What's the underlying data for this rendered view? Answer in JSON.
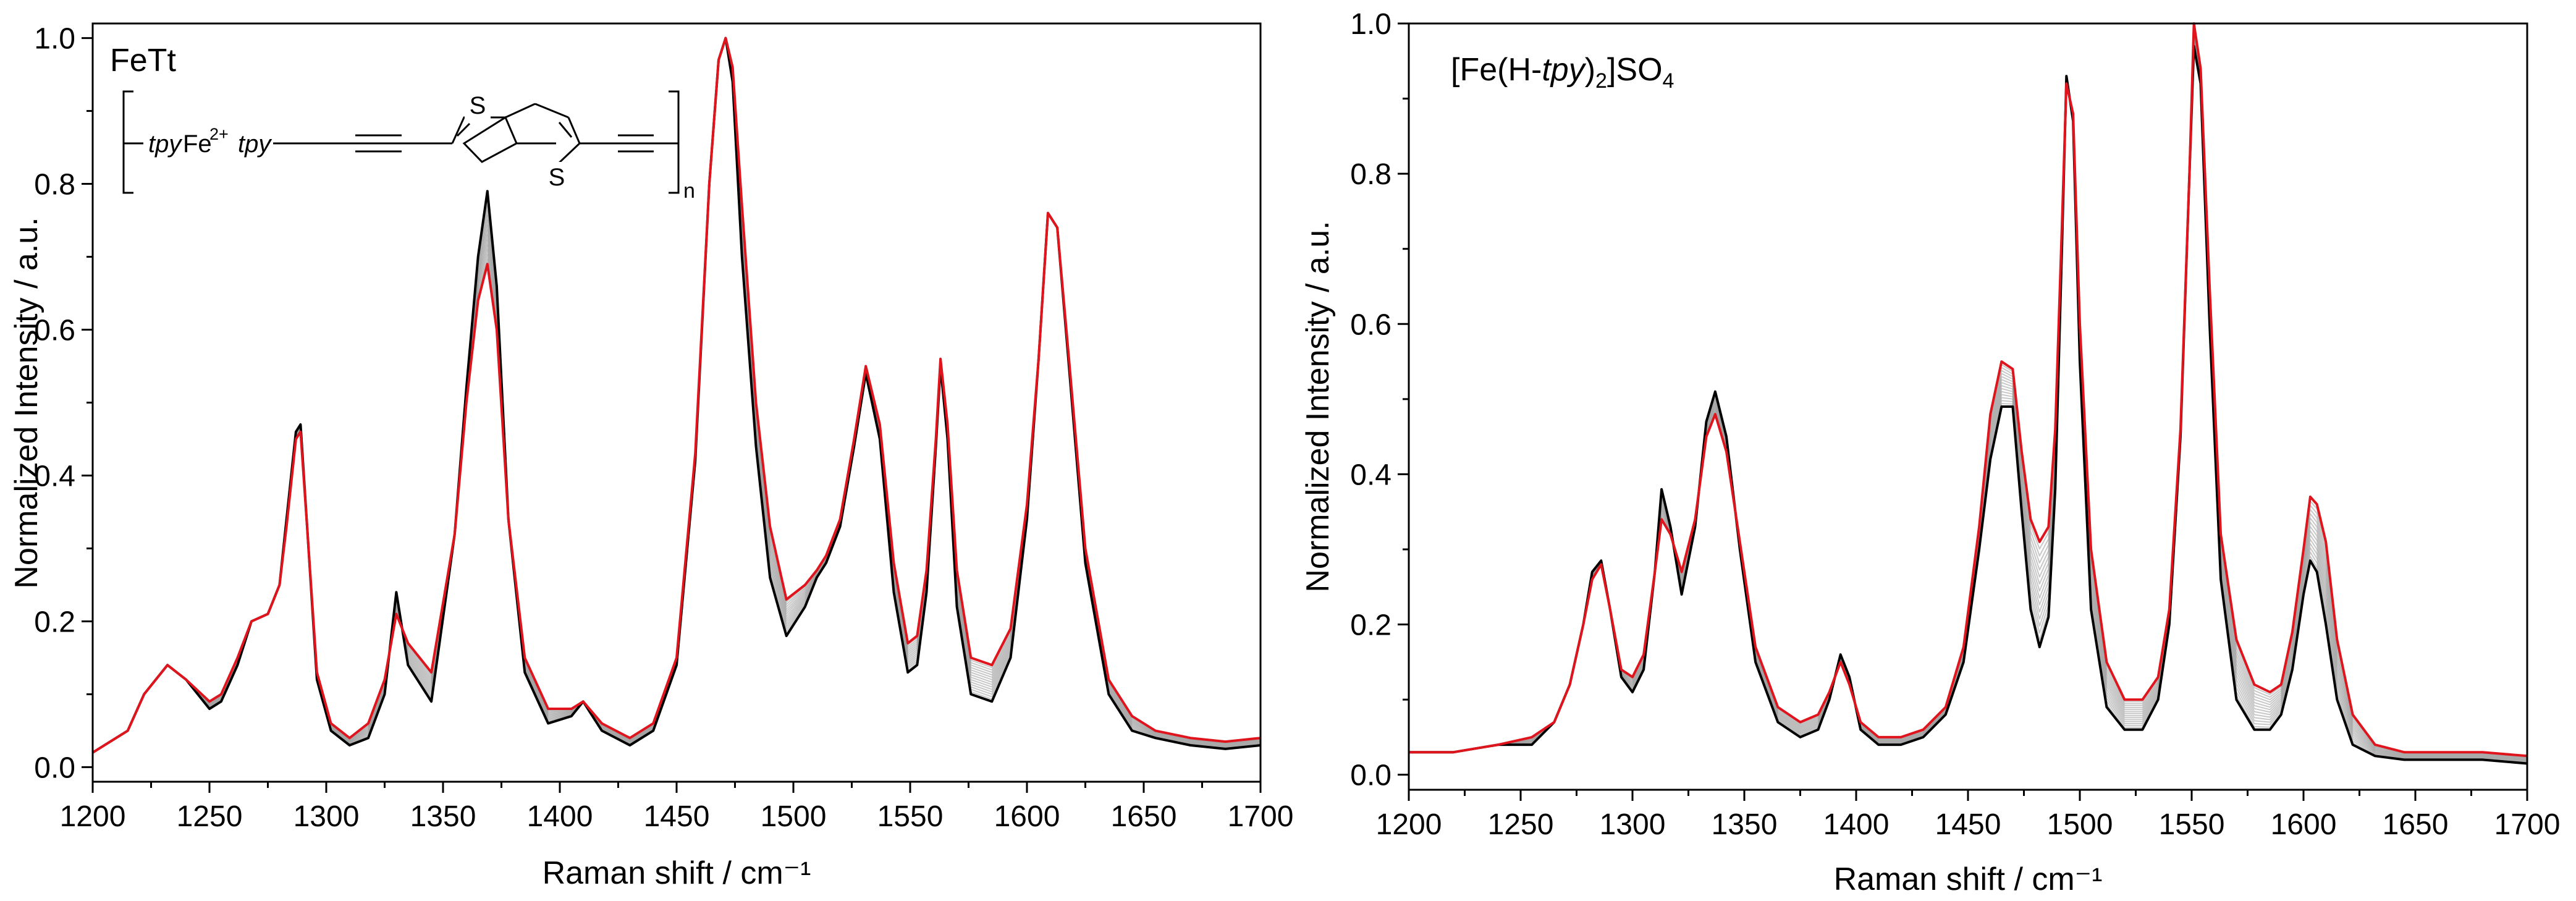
{
  "colors": {
    "initial": "#000000",
    "intermediate": "#9a9a9a",
    "final": "#e0141c",
    "axis": "#000000"
  },
  "molecule": {
    "tpy_left": "tpy",
    "metal": "Fe",
    "charge": "2+",
    "tpy_right": "tpy",
    "sulfur": "S",
    "repeat": "n"
  },
  "chart_data": [
    {
      "type": "line",
      "panel": "left",
      "title": "FeTt",
      "xlabel": "Raman shift / cm⁻¹",
      "ylabel": "Normalized Intensity / a.u.",
      "xlim": [
        1200,
        1700
      ],
      "ylim": [
        -0.02,
        1.02
      ],
      "xticks": [
        1200,
        1250,
        1300,
        1350,
        1400,
        1450,
        1500,
        1550,
        1600,
        1650,
        1700
      ],
      "yticks": [
        0.0,
        0.2,
        0.4,
        0.6,
        0.8,
        1.0
      ],
      "ytick_labels": [
        "0.0",
        "0.2",
        "0.4",
        "0.6",
        "0.8",
        "1.0"
      ],
      "series": [
        {
          "name": "initial",
          "color": "#000000",
          "x": [
            1200,
            1215,
            1222,
            1232,
            1240,
            1250,
            1255,
            1262,
            1268,
            1275,
            1280,
            1283,
            1287,
            1289,
            1292,
            1296,
            1302,
            1310,
            1318,
            1325,
            1330,
            1335,
            1345,
            1355,
            1360,
            1365,
            1369,
            1373,
            1378,
            1385,
            1395,
            1405,
            1410,
            1418,
            1430,
            1440,
            1450,
            1458,
            1464,
            1468,
            1471,
            1474,
            1478,
            1484,
            1490,
            1497,
            1505,
            1510,
            1514,
            1520,
            1526,
            1531,
            1537,
            1543,
            1549,
            1553,
            1557,
            1561,
            1563,
            1566,
            1570,
            1576,
            1585,
            1593,
            1600,
            1605,
            1609,
            1613,
            1618,
            1625,
            1635,
            1645,
            1655,
            1670,
            1685,
            1700
          ],
          "y": [
            0.02,
            0.05,
            0.1,
            0.14,
            0.12,
            0.08,
            0.09,
            0.14,
            0.2,
            0.21,
            0.25,
            0.34,
            0.46,
            0.47,
            0.32,
            0.12,
            0.05,
            0.03,
            0.04,
            0.1,
            0.24,
            0.14,
            0.09,
            0.32,
            0.52,
            0.7,
            0.79,
            0.66,
            0.34,
            0.13,
            0.06,
            0.07,
            0.09,
            0.05,
            0.03,
            0.05,
            0.14,
            0.42,
            0.8,
            0.97,
            1.0,
            0.94,
            0.7,
            0.44,
            0.26,
            0.18,
            0.22,
            0.26,
            0.28,
            0.33,
            0.44,
            0.54,
            0.45,
            0.24,
            0.13,
            0.14,
            0.24,
            0.44,
            0.55,
            0.45,
            0.22,
            0.1,
            0.09,
            0.15,
            0.34,
            0.56,
            0.76,
            0.74,
            0.55,
            0.28,
            0.1,
            0.05,
            0.04,
            0.03,
            0.025,
            0.03
          ]
        },
        {
          "name": "final",
          "color": "#e0141c",
          "x": [
            1200,
            1215,
            1222,
            1232,
            1240,
            1250,
            1255,
            1262,
            1268,
            1275,
            1280,
            1283,
            1287,
            1289,
            1292,
            1296,
            1302,
            1310,
            1318,
            1325,
            1330,
            1335,
            1345,
            1355,
            1360,
            1365,
            1369,
            1373,
            1378,
            1385,
            1395,
            1405,
            1410,
            1418,
            1430,
            1440,
            1450,
            1458,
            1464,
            1468,
            1471,
            1474,
            1478,
            1484,
            1490,
            1497,
            1505,
            1510,
            1514,
            1520,
            1526,
            1531,
            1537,
            1543,
            1549,
            1553,
            1557,
            1561,
            1563,
            1566,
            1570,
            1576,
            1585,
            1593,
            1600,
            1605,
            1609,
            1613,
            1618,
            1625,
            1635,
            1645,
            1655,
            1670,
            1685,
            1700
          ],
          "y": [
            0.02,
            0.05,
            0.1,
            0.14,
            0.12,
            0.09,
            0.1,
            0.15,
            0.2,
            0.21,
            0.25,
            0.33,
            0.45,
            0.46,
            0.32,
            0.13,
            0.06,
            0.04,
            0.06,
            0.12,
            0.21,
            0.17,
            0.13,
            0.32,
            0.5,
            0.64,
            0.69,
            0.6,
            0.34,
            0.15,
            0.08,
            0.08,
            0.09,
            0.06,
            0.04,
            0.06,
            0.15,
            0.43,
            0.8,
            0.97,
            1.0,
            0.96,
            0.77,
            0.5,
            0.33,
            0.23,
            0.25,
            0.27,
            0.29,
            0.34,
            0.45,
            0.55,
            0.47,
            0.28,
            0.17,
            0.18,
            0.27,
            0.45,
            0.56,
            0.47,
            0.27,
            0.15,
            0.14,
            0.19,
            0.36,
            0.56,
            0.76,
            0.74,
            0.56,
            0.3,
            0.12,
            0.07,
            0.05,
            0.04,
            0.035,
            0.04
          ]
        }
      ]
    },
    {
      "type": "line",
      "panel": "right",
      "title": "[Fe(H-tpy)₂]SO₄",
      "title_parts": {
        "pre": "[Fe(H-",
        "italic": "tpy",
        "mid": ")",
        "sub1": "2",
        "post": "]SO",
        "sub2": "4"
      },
      "xlabel": "Raman shift / cm⁻¹",
      "ylabel": "Normalized Intensity / a.u.",
      "xlim": [
        1200,
        1700
      ],
      "ylim": [
        -0.02,
        1.0
      ],
      "xticks": [
        1200,
        1250,
        1300,
        1350,
        1400,
        1450,
        1500,
        1550,
        1600,
        1650,
        1700
      ],
      "yticks": [
        0.0,
        0.2,
        0.4,
        0.6,
        0.8,
        1.0
      ],
      "ytick_labels": [
        "0.0",
        "0.2",
        "0.4",
        "0.6",
        "0.8",
        "1.0"
      ],
      "series": [
        {
          "name": "initial",
          "color": "#000000",
          "x": [
            1200,
            1220,
            1240,
            1255,
            1265,
            1272,
            1278,
            1282,
            1286,
            1290,
            1295,
            1300,
            1305,
            1310,
            1313,
            1317,
            1322,
            1328,
            1333,
            1337,
            1342,
            1348,
            1355,
            1365,
            1375,
            1383,
            1388,
            1393,
            1397,
            1402,
            1410,
            1420,
            1430,
            1440,
            1448,
            1455,
            1460,
            1465,
            1470,
            1474,
            1478,
            1482,
            1486,
            1489,
            1492,
            1494,
            1497,
            1500,
            1505,
            1512,
            1520,
            1528,
            1535,
            1540,
            1545,
            1549,
            1551,
            1554,
            1558,
            1563,
            1570,
            1578,
            1585,
            1590,
            1595,
            1600,
            1603,
            1606,
            1610,
            1615,
            1622,
            1632,
            1645,
            1660,
            1680,
            1700
          ],
          "y": [
            0.03,
            0.03,
            0.04,
            0.04,
            0.07,
            0.12,
            0.2,
            0.27,
            0.285,
            0.22,
            0.13,
            0.11,
            0.14,
            0.27,
            0.38,
            0.33,
            0.24,
            0.33,
            0.47,
            0.51,
            0.45,
            0.3,
            0.15,
            0.07,
            0.05,
            0.06,
            0.1,
            0.16,
            0.13,
            0.06,
            0.04,
            0.04,
            0.05,
            0.08,
            0.15,
            0.3,
            0.42,
            0.49,
            0.49,
            0.35,
            0.22,
            0.17,
            0.21,
            0.38,
            0.7,
            0.93,
            0.87,
            0.55,
            0.22,
            0.09,
            0.06,
            0.06,
            0.1,
            0.2,
            0.45,
            0.8,
            0.97,
            0.92,
            0.6,
            0.26,
            0.1,
            0.06,
            0.06,
            0.08,
            0.14,
            0.24,
            0.285,
            0.27,
            0.2,
            0.1,
            0.04,
            0.025,
            0.02,
            0.02,
            0.02,
            0.015
          ]
        },
        {
          "name": "final",
          "color": "#e0141c",
          "x": [
            1200,
            1220,
            1240,
            1255,
            1265,
            1272,
            1278,
            1282,
            1286,
            1290,
            1295,
            1300,
            1305,
            1310,
            1313,
            1317,
            1322,
            1328,
            1333,
            1337,
            1342,
            1348,
            1355,
            1365,
            1375,
            1383,
            1388,
            1393,
            1397,
            1402,
            1410,
            1420,
            1430,
            1440,
            1448,
            1455,
            1460,
            1465,
            1470,
            1474,
            1478,
            1482,
            1486,
            1489,
            1492,
            1494,
            1497,
            1500,
            1505,
            1512,
            1520,
            1528,
            1535,
            1540,
            1545,
            1549,
            1551,
            1554,
            1558,
            1563,
            1570,
            1578,
            1585,
            1590,
            1595,
            1600,
            1603,
            1606,
            1610,
            1615,
            1622,
            1632,
            1645,
            1660,
            1680,
            1700
          ],
          "y": [
            0.03,
            0.03,
            0.04,
            0.05,
            0.07,
            0.12,
            0.2,
            0.26,
            0.28,
            0.22,
            0.14,
            0.13,
            0.16,
            0.27,
            0.34,
            0.32,
            0.27,
            0.34,
            0.45,
            0.48,
            0.43,
            0.31,
            0.17,
            0.09,
            0.07,
            0.08,
            0.11,
            0.15,
            0.12,
            0.07,
            0.05,
            0.05,
            0.06,
            0.09,
            0.17,
            0.33,
            0.48,
            0.55,
            0.54,
            0.43,
            0.34,
            0.31,
            0.33,
            0.46,
            0.73,
            0.92,
            0.88,
            0.6,
            0.3,
            0.15,
            0.1,
            0.1,
            0.13,
            0.22,
            0.46,
            0.8,
            1.0,
            0.94,
            0.65,
            0.32,
            0.18,
            0.12,
            0.11,
            0.12,
            0.19,
            0.3,
            0.37,
            0.36,
            0.31,
            0.18,
            0.08,
            0.04,
            0.03,
            0.03,
            0.03,
            0.025
          ]
        }
      ]
    }
  ]
}
